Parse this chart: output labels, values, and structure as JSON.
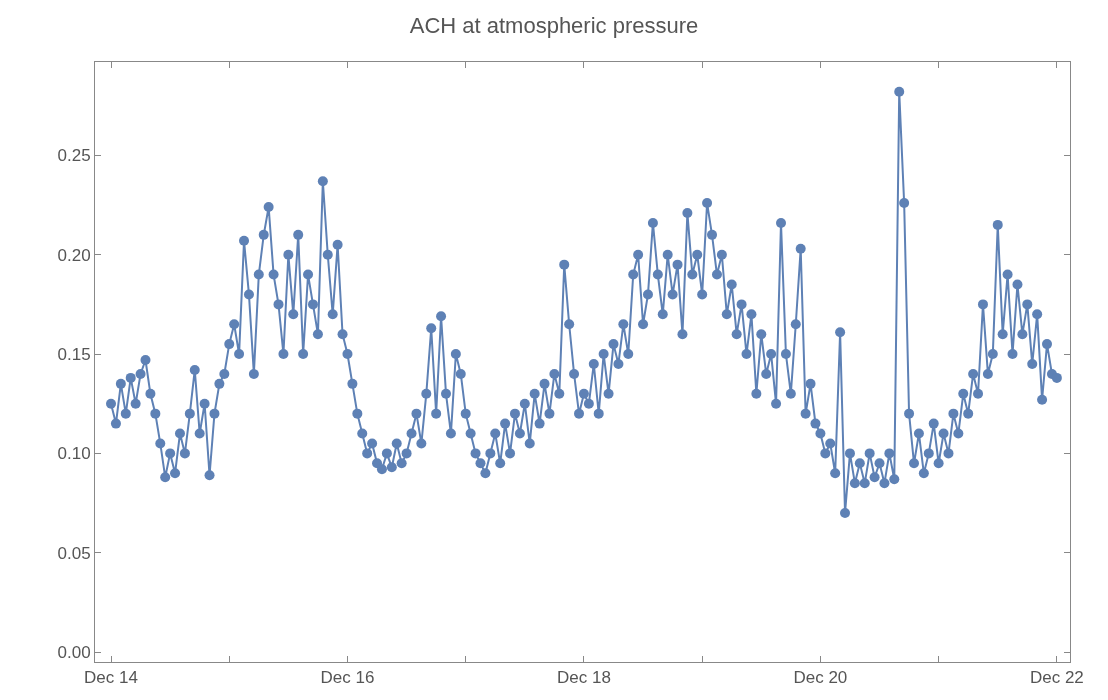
{
  "chart_data": {
    "type": "line",
    "title": "ACH at atmospheric pressure",
    "marker": "circle",
    "line_style": "solid",
    "xlim": [
      "--12-13T20:45",
      "--12-22T02:40"
    ],
    "xticks": [
      {
        "value": "--12-14",
        "label": "Dec 14"
      },
      {
        "value": "--12-15",
        "label": null
      },
      {
        "value": "--12-16",
        "label": "Dec 16"
      },
      {
        "value": "--12-17",
        "label": null
      },
      {
        "value": "--12-18",
        "label": "Dec 18"
      },
      {
        "value": "--12-19",
        "label": null
      },
      {
        "value": "--12-20",
        "label": "Dec 20"
      },
      {
        "value": "--12-21",
        "label": null
      },
      {
        "value": "--12-22",
        "label": "Dec 22"
      }
    ],
    "ylim": [
      -0.005,
      0.297
    ],
    "yticks": [
      {
        "value": 0,
        "label": "0.00"
      },
      {
        "value": 0.05,
        "label": "0.05"
      },
      {
        "value": 0.1,
        "label": "0.10"
      },
      {
        "value": 0.15,
        "label": "0.15"
      },
      {
        "value": 0.2,
        "label": "0.20"
      },
      {
        "value": 0.25,
        "label": "0.25"
      }
    ],
    "series": [
      {
        "color": "#5e81b5",
        "x": [
          "--12-14T00:00",
          "--12-14T01:00",
          "--12-14T02:00",
          "--12-14T03:00",
          "--12-14T04:00",
          "--12-14T05:00",
          "--12-14T06:00",
          "--12-14T07:00",
          "--12-14T08:00",
          "--12-14T09:00",
          "--12-14T10:00",
          "--12-14T11:00",
          "--12-14T12:00",
          "--12-14T13:00",
          "--12-14T14:00",
          "--12-14T15:00",
          "--12-14T16:00",
          "--12-14T17:00",
          "--12-14T18:00",
          "--12-14T19:00",
          "--12-14T20:00",
          "--12-14T21:00",
          "--12-14T22:00",
          "--12-14T23:00",
          "--12-15T00:00",
          "--12-15T01:00",
          "--12-15T02:00",
          "--12-15T03:00",
          "--12-15T04:00",
          "--12-15T05:00",
          "--12-15T06:00",
          "--12-15T07:00",
          "--12-15T08:00",
          "--12-15T09:00",
          "--12-15T10:00",
          "--12-15T11:00",
          "--12-15T12:00",
          "--12-15T13:00",
          "--12-15T14:00",
          "--12-15T15:00",
          "--12-15T16:00",
          "--12-15T17:00",
          "--12-15T18:00",
          "--12-15T19:00",
          "--12-15T20:00",
          "--12-15T21:00",
          "--12-15T22:00",
          "--12-15T23:00",
          "--12-16T00:00",
          "--12-16T01:00",
          "--12-16T02:00",
          "--12-16T03:00",
          "--12-16T04:00",
          "--12-16T05:00",
          "--12-16T06:00",
          "--12-16T07:00",
          "--12-16T08:00",
          "--12-16T09:00",
          "--12-16T10:00",
          "--12-16T11:00",
          "--12-16T12:00",
          "--12-16T13:00",
          "--12-16T14:00",
          "--12-16T15:00",
          "--12-16T16:00",
          "--12-16T17:00",
          "--12-16T18:00",
          "--12-16T19:00",
          "--12-16T20:00",
          "--12-16T21:00",
          "--12-16T22:00",
          "--12-16T23:00",
          "--12-17T00:00",
          "--12-17T01:00",
          "--12-17T02:00",
          "--12-17T03:00",
          "--12-17T04:00",
          "--12-17T05:00",
          "--12-17T06:00",
          "--12-17T07:00",
          "--12-17T08:00",
          "--12-17T09:00",
          "--12-17T10:00",
          "--12-17T11:00",
          "--12-17T12:00",
          "--12-17T13:00",
          "--12-17T14:00",
          "--12-17T15:00",
          "--12-17T16:00",
          "--12-17T17:00",
          "--12-17T18:00",
          "--12-17T19:00",
          "--12-17T20:00",
          "--12-17T21:00",
          "--12-17T22:00",
          "--12-17T23:00",
          "--12-18T00:00",
          "--12-18T01:00",
          "--12-18T02:00",
          "--12-18T03:00",
          "--12-18T04:00",
          "--12-18T05:00",
          "--12-18T06:00",
          "--12-18T07:00",
          "--12-18T08:00",
          "--12-18T09:00",
          "--12-18T10:00",
          "--12-18T11:00",
          "--12-18T12:00",
          "--12-18T13:00",
          "--12-18T14:00",
          "--12-18T15:00",
          "--12-18T16:00",
          "--12-18T17:00",
          "--12-18T18:00",
          "--12-18T19:00",
          "--12-18T20:00",
          "--12-18T21:00",
          "--12-18T22:00",
          "--12-18T23:00",
          "--12-19T00:00",
          "--12-19T01:00",
          "--12-19T02:00",
          "--12-19T03:00",
          "--12-19T04:00",
          "--12-19T05:00",
          "--12-19T06:00",
          "--12-19T07:00",
          "--12-19T08:00",
          "--12-19T09:00",
          "--12-19T10:00",
          "--12-19T11:00",
          "--12-19T12:00",
          "--12-19T13:00",
          "--12-19T14:00",
          "--12-19T15:00",
          "--12-19T16:00",
          "--12-19T17:00",
          "--12-19T18:00",
          "--12-19T19:00",
          "--12-19T20:00",
          "--12-19T21:00",
          "--12-19T22:00",
          "--12-19T23:00",
          "--12-20T00:00",
          "--12-20T01:00",
          "--12-20T02:00",
          "--12-20T03:00",
          "--12-20T04:00",
          "--12-20T05:00",
          "--12-20T06:00",
          "--12-20T07:00",
          "--12-20T08:00",
          "--12-20T09:00",
          "--12-20T10:00",
          "--12-20T11:00",
          "--12-20T12:00",
          "--12-20T13:00",
          "--12-20T14:00",
          "--12-20T15:00",
          "--12-20T16:00",
          "--12-20T17:00",
          "--12-20T18:00",
          "--12-20T19:00",
          "--12-20T20:00",
          "--12-20T21:00",
          "--12-20T22:00",
          "--12-20T23:00",
          "--12-21T00:00",
          "--12-21T01:00",
          "--12-21T02:00",
          "--12-21T03:00",
          "--12-21T04:00",
          "--12-21T05:00",
          "--12-21T06:00",
          "--12-21T07:00",
          "--12-21T08:00",
          "--12-21T09:00",
          "--12-21T10:00",
          "--12-21T11:00",
          "--12-21T12:00",
          "--12-21T13:00",
          "--12-21T14:00",
          "--12-21T15:00",
          "--12-21T16:00",
          "--12-21T17:00",
          "--12-21T18:00",
          "--12-21T19:00",
          "--12-21T20:00",
          "--12-21T21:00",
          "--12-21T22:00",
          "--12-21T23:00",
          "--12-22T00:00"
        ],
        "values": [
          0.125,
          0.115,
          0.135,
          0.12,
          0.138,
          0.125,
          0.14,
          0.147,
          0.13,
          0.12,
          0.105,
          0.088,
          0.1,
          0.09,
          0.11,
          0.1,
          0.12,
          0.142,
          0.11,
          0.125,
          0.089,
          0.12,
          0.135,
          0.14,
          0.155,
          0.165,
          0.15,
          0.207,
          0.18,
          0.14,
          0.19,
          0.21,
          0.224,
          0.19,
          0.175,
          0.15,
          0.2,
          0.17,
          0.21,
          0.15,
          0.19,
          0.175,
          0.16,
          0.237,
          0.2,
          0.17,
          0.205,
          0.16,
          0.15,
          0.135,
          0.12,
          0.11,
          0.1,
          0.105,
          0.095,
          0.092,
          0.1,
          0.093,
          0.105,
          0.095,
          0.1,
          0.11,
          0.12,
          0.105,
          0.13,
          0.163,
          0.12,
          0.169,
          0.13,
          0.11,
          0.15,
          0.14,
          0.12,
          0.11,
          0.1,
          0.095,
          0.09,
          0.1,
          0.11,
          0.095,
          0.115,
          0.1,
          0.12,
          0.11,
          0.125,
          0.105,
          0.13,
          0.115,
          0.135,
          0.12,
          0.14,
          0.13,
          0.195,
          0.165,
          0.14,
          0.12,
          0.13,
          0.125,
          0.145,
          0.12,
          0.15,
          0.13,
          0.155,
          0.145,
          0.165,
          0.15,
          0.19,
          0.2,
          0.165,
          0.18,
          0.216,
          0.19,
          0.17,
          0.2,
          0.18,
          0.195,
          0.16,
          0.221,
          0.19,
          0.2,
          0.18,
          0.226,
          0.21,
          0.19,
          0.2,
          0.17,
          0.185,
          0.16,
          0.175,
          0.15,
          0.17,
          0.13,
          0.16,
          0.14,
          0.15,
          0.125,
          0.216,
          0.15,
          0.13,
          0.165,
          0.203,
          0.12,
          0.135,
          0.115,
          0.11,
          0.1,
          0.105,
          0.09,
          0.161,
          0.07,
          0.1,
          0.085,
          0.095,
          0.085,
          0.1,
          0.088,
          0.095,
          0.085,
          0.1,
          0.087,
          0.282,
          0.226,
          0.12,
          0.095,
          0.11,
          0.09,
          0.1,
          0.115,
          0.095,
          0.11,
          0.1,
          0.12,
          0.11,
          0.13,
          0.12,
          0.14,
          0.13,
          0.175,
          0.14,
          0.15,
          0.215,
          0.16,
          0.19,
          0.15,
          0.185,
          0.16,
          0.175,
          0.145,
          0.17,
          0.127,
          0.155,
          0.14,
          0.138
        ]
      }
    ]
  }
}
